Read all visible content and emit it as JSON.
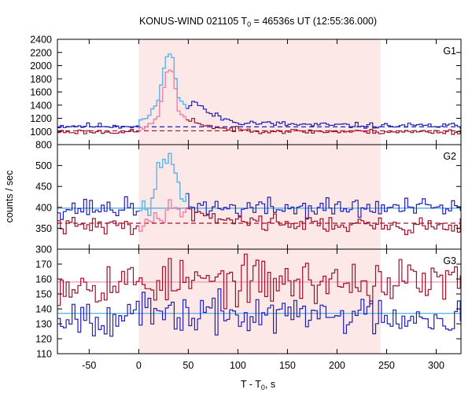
{
  "chart_data": {
    "type": "line",
    "title": {
      "prefix": "KONUS-WIND 021105 T",
      "sub": "0",
      "suffix": " = 46536s UT (12:55:36.000)"
    },
    "xlabel": {
      "prefix": "T - T",
      "sub": "0",
      "suffix": ", s"
    },
    "ylabel": "counts / sec",
    "xlim": [
      -82,
      325
    ],
    "xticks": [
      -50,
      0,
      50,
      100,
      150,
      200,
      250,
      300
    ],
    "shaded_interval": [
      0,
      244
    ],
    "bin_width": 2.944,
    "colors": {
      "shade": "#fde8e8",
      "dark_blue": "#1f1fb4",
      "light_blue": "#5fbff0",
      "dark_red": "#a0102a",
      "pink": "#f08cb0",
      "fit_blue": "#3fa9e6"
    },
    "panels": [
      {
        "name": "G1",
        "ylim": [
          800,
          2400
        ],
        "yticks": [
          800,
          1000,
          1200,
          1400,
          1600,
          1800,
          2000,
          2200,
          2400
        ],
        "show_lowest_tick": true,
        "series": [
          {
            "role": "dark blue total counts",
            "base": 1085,
            "noise": 22,
            "seed": 11,
            "pulses": [
              {
                "t": [
                  0,
                  12,
                  20,
                  28,
                  35,
                  40,
                  48,
                  55,
                  60,
                  70,
                  85,
                  100,
                  130,
                  170,
                  250
                ],
                "v": [
                  60,
                  160,
                  420,
                  1060,
                  1060,
                  430,
                  260,
                  380,
                  330,
                  200,
                  110,
                  60,
                  35,
                  15,
                  0
                ]
              }
            ],
            "light_segment": [
              0,
              48
            ]
          },
          {
            "role": "dark red counts",
            "base": 995,
            "noise": 18,
            "seed": 23,
            "pulses": [
              {
                "t": [
                  0,
                  12,
                  20,
                  28,
                  35,
                  40,
                  48,
                  55,
                  60,
                  70,
                  85,
                  100,
                  130,
                  170,
                  250
                ],
                "v": [
                  40,
                  100,
                  250,
                  910,
                  910,
                  320,
                  160,
                  170,
                  140,
                  90,
                  50,
                  30,
                  15,
                  5,
                  0
                ]
              }
            ],
            "light_segment": [
              0,
              48
            ]
          }
        ],
        "background_levels": [
          {
            "value": 1070,
            "color": "dark_blue"
          },
          {
            "value": 1010,
            "color": "dark_red"
          }
        ]
      },
      {
        "name": "G2",
        "ylim": [
          300,
          550
        ],
        "yticks": [
          300,
          350,
          400,
          450,
          500
        ],
        "show_lowest_tick": true,
        "series": [
          {
            "role": "dark blue counts",
            "base": 398,
            "noise": 12,
            "seed": 37,
            "pulses": [
              {
                "t": [
                  0,
                  15,
                  20,
                  24,
                  36,
                  40,
                  44,
                  50,
                  60,
                  80
                ],
                "v": [
                  0,
                  10,
                  95,
                  110,
                  100,
                  60,
                  30,
                  15,
                  5,
                  0
                ]
              }
            ],
            "light_segment": [
              0,
              48
            ]
          },
          {
            "role": "dark red counts",
            "base": 355,
            "noise": 10,
            "seed": 41,
            "pulses": [
              {
                "t": [
                  0,
                  12,
                  20,
                  30,
                  40,
                  50,
                  70,
                  100,
                  150,
                  250
                ],
                "v": [
                  5,
                  10,
                  20,
                  40,
                  45,
                  35,
                  25,
                  15,
                  8,
                  0
                ]
              }
            ],
            "light_segment": [
              0,
              48
            ]
          }
        ],
        "background_levels": [
          {
            "value": 398,
            "color": "fit_blue",
            "solid": true
          },
          {
            "value": 362,
            "color": "dark_red"
          }
        ]
      },
      {
        "name": "G3",
        "ylim": [
          110,
          180
        ],
        "yticks": [
          110,
          120,
          130,
          140,
          150,
          160,
          170
        ],
        "show_lowest_tick": true,
        "series": [
          {
            "role": "dark red counts",
            "base": 158,
            "noise": 7.5,
            "seed": 53,
            "pulses": [],
            "light_segment": null
          },
          {
            "role": "dark blue counts",
            "base": 136,
            "noise": 6.5,
            "seed": 67,
            "pulses": [],
            "light_segment": null
          }
        ],
        "background_levels": [
          {
            "value": 158,
            "color": "pink",
            "solid": true
          },
          {
            "value": 137,
            "color": "fit_blue",
            "solid": true
          }
        ]
      }
    ]
  }
}
